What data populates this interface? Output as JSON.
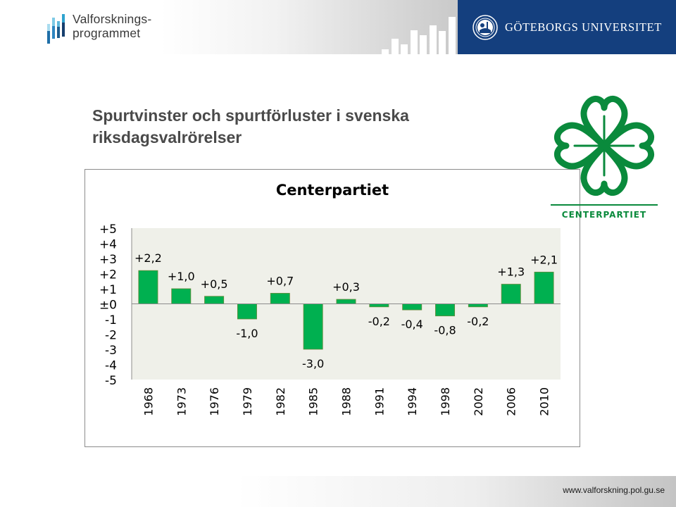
{
  "header": {
    "program_logo_line1": "Valforsknings-",
    "program_logo_line2": "programmet",
    "university_name": "GÖTEBORGS UNIVERSITET",
    "program_logo_icon": "bar-chart-logo-icon",
    "university_seal_icon": "university-seal-icon"
  },
  "slide": {
    "title": "Spurtvinster och spurtförluster i svenska riksdagsvalrörelser"
  },
  "party_logo": {
    "icon": "four-leaf-clover-icon",
    "name": "CENTERPARTIET",
    "color": "#0a8a3c"
  },
  "footer": {
    "url": "www.valforskning.pol.gu.se"
  },
  "colors": {
    "bar_fill": "#00b050",
    "bar_stroke": "#6a8a3a",
    "plot_background": "#eff0e9",
    "header_blue": "#143f7e"
  },
  "chart_data": {
    "type": "bar",
    "title": "Centerpartiet",
    "xlabel": "",
    "ylabel": "",
    "categories": [
      "1968",
      "1973",
      "1976",
      "1979",
      "1982",
      "1985",
      "1988",
      "1991",
      "1994",
      "1998",
      "2002",
      "2006",
      "2010"
    ],
    "values": [
      2.2,
      1.0,
      0.5,
      -1.0,
      0.7,
      -3.0,
      0.3,
      -0.2,
      -0.4,
      -0.8,
      -0.2,
      1.3,
      2.1
    ],
    "data_labels": [
      "+2,2",
      "+1,0",
      "+0,5",
      "-1,0",
      "+0,7",
      "-3,0",
      "+0,3",
      "-0,2",
      "-0,4",
      "-0,8",
      "-0,2",
      "+1,3",
      "+2,1"
    ],
    "ylim": [
      -5,
      5
    ],
    "yticks": [
      5,
      4,
      3,
      2,
      1,
      0,
      -1,
      -2,
      -3,
      -4,
      -5
    ],
    "ytick_labels": [
      "+5",
      "+4",
      "+3",
      "+2",
      "+1",
      "±0",
      "-1",
      "-2",
      "-3",
      "-4",
      "-5"
    ],
    "x_tick_rotation": "vertical",
    "grid": false,
    "legend": "none"
  }
}
